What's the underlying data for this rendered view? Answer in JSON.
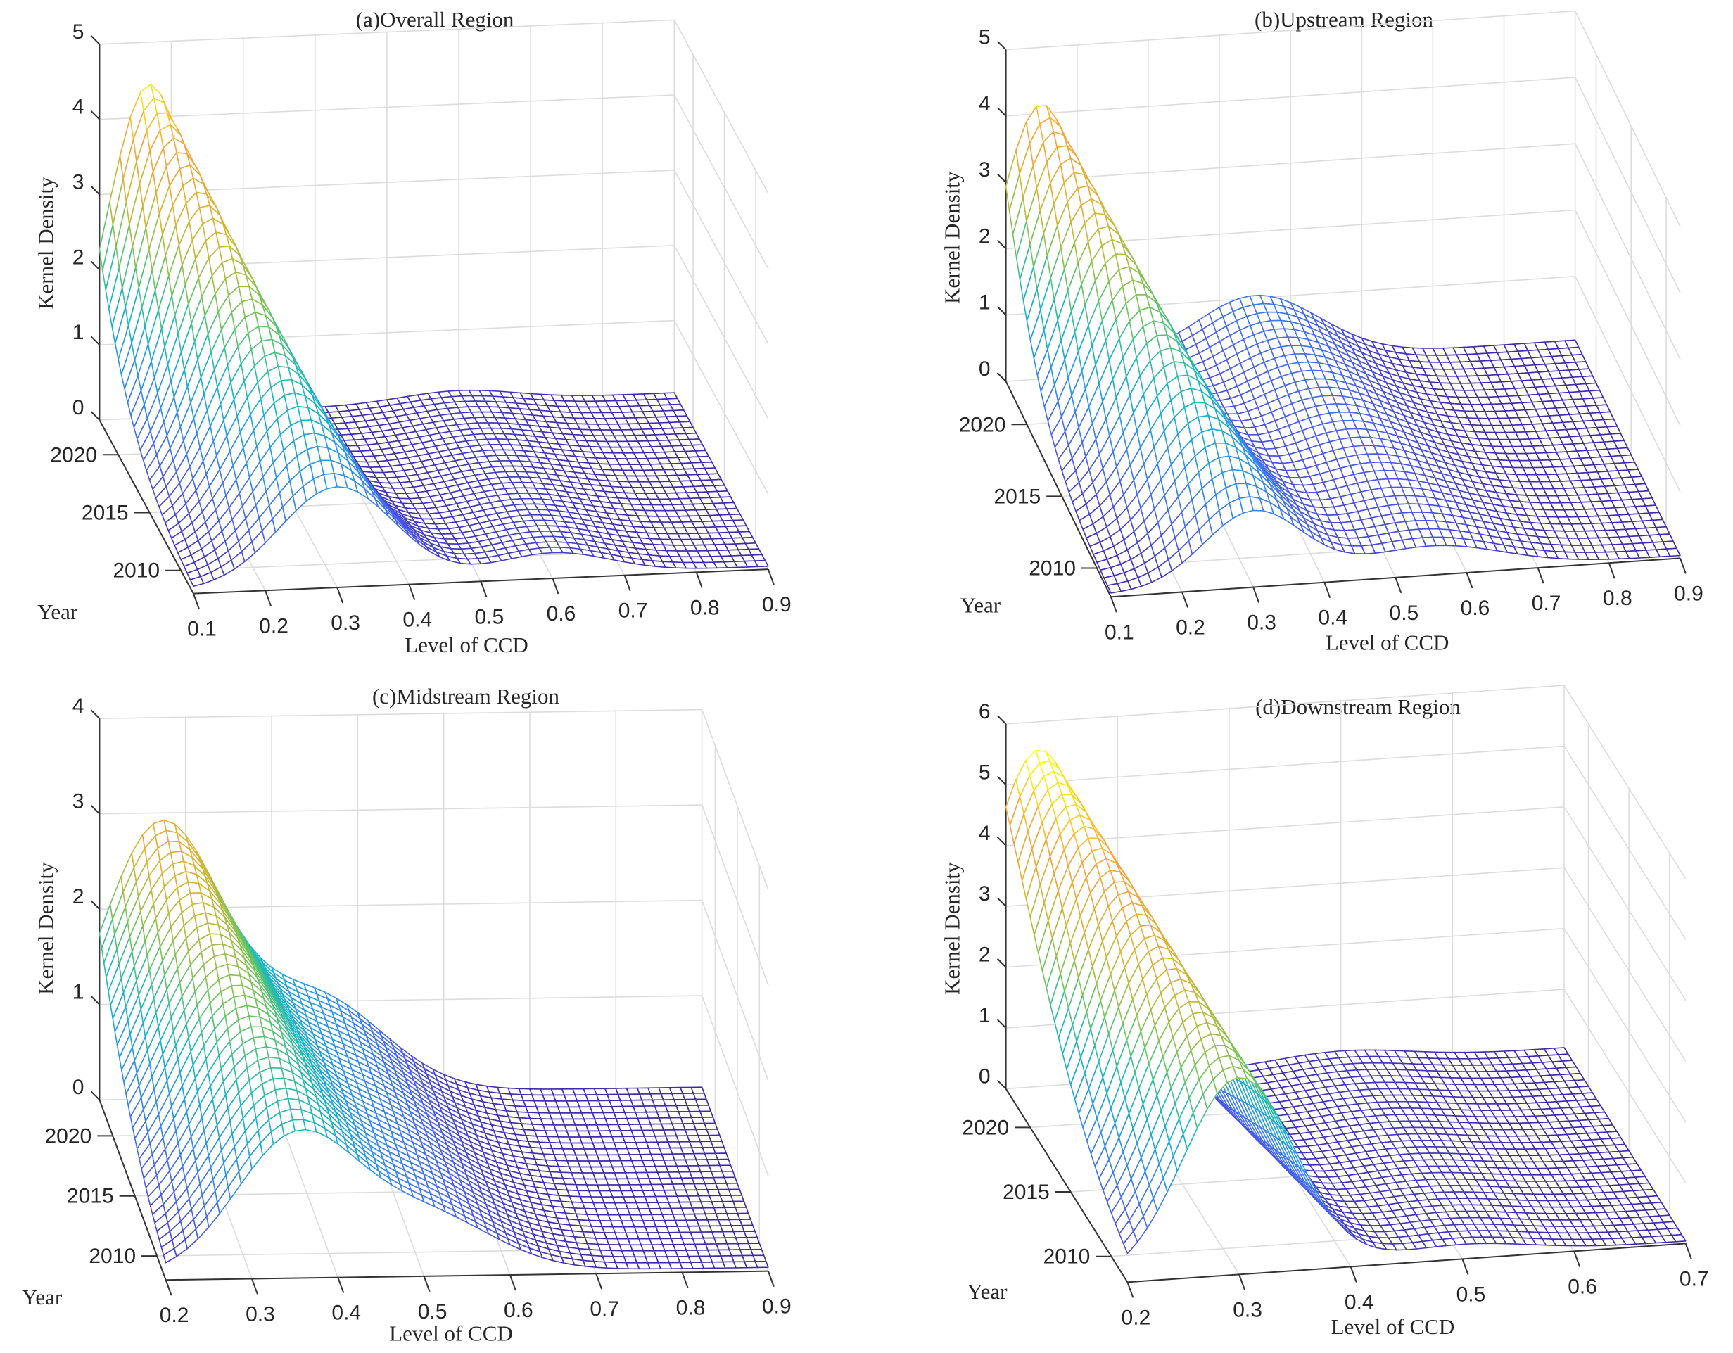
{
  "chart_data": [
    {
      "type": "surface",
      "title": "(a)Overall Region",
      "xlabel": "Level of CCD",
      "ylabel": "Year",
      "zlabel": "Kernel Density",
      "xlim": [
        0.1,
        0.9
      ],
      "xticks": [
        "0.1",
        "0.2",
        "0.3",
        "0.4",
        "0.5",
        "0.6",
        "0.7",
        "0.8",
        "0.9"
      ],
      "ylim": [
        2008,
        2023
      ],
      "yticks": [
        "2010",
        "2015",
        "2020"
      ],
      "zlim": [
        0,
        5
      ],
      "zticks": [
        "0",
        "1",
        "2",
        "3",
        "4",
        "5"
      ],
      "components": [
        {
          "mean": [
            0.3,
            0.17
          ],
          "sd": [
            0.08,
            0.06
          ],
          "height": [
            1.3,
            4.4
          ]
        },
        {
          "mean": [
            0.6,
            0.6
          ],
          "sd": [
            0.08,
            0.08
          ],
          "height": [
            0.3,
            0.15
          ]
        }
      ]
    },
    {
      "type": "surface",
      "title": "(b)Upstream Region",
      "xlabel": "Level of CCD",
      "ylabel": "Year",
      "zlabel": "Kernel Density",
      "xlim": [
        0.1,
        0.9
      ],
      "xticks": [
        "0.1",
        "0.2",
        "0.3",
        "0.4",
        "0.5",
        "0.6",
        "0.7",
        "0.8",
        "0.9"
      ],
      "ylim": [
        2008,
        2023
      ],
      "yticks": [
        "2010",
        "2015",
        "2020"
      ],
      "zlim": [
        0,
        5
      ],
      "zticks": [
        "0",
        "1",
        "2",
        "3",
        "4",
        "5"
      ],
      "components": [
        {
          "mean": [
            0.3,
            0.15
          ],
          "sd": [
            0.07,
            0.06
          ],
          "height": [
            1.1,
            4.1
          ]
        },
        {
          "mean": [
            0.55,
            0.45
          ],
          "sd": [
            0.1,
            0.09
          ],
          "height": [
            0.4,
            1.0
          ]
        }
      ]
    },
    {
      "type": "surface",
      "title": "(c)Midstream Region",
      "xlabel": "Level of CCD",
      "ylabel": "Year",
      "zlabel": "Kernel Density",
      "xlim": [
        0.2,
        0.9
      ],
      "xticks": [
        "0.2",
        "0.3",
        "0.4",
        "0.5",
        "0.6",
        "0.7",
        "0.8",
        "0.9"
      ],
      "ylim": [
        2008,
        2023
      ],
      "yticks": [
        "2010",
        "2015",
        "2020"
      ],
      "zlim": [
        0,
        4
      ],
      "zticks": [
        "0",
        "1",
        "2",
        "3",
        "4"
      ],
      "components": [
        {
          "mean": [
            0.35,
            0.27
          ],
          "sd": [
            0.07,
            0.07
          ],
          "height": [
            1.4,
            2.8
          ]
        },
        {
          "mean": [
            0.5,
            0.45
          ],
          "sd": [
            0.08,
            0.08
          ],
          "height": [
            0.6,
            1.0
          ]
        }
      ]
    },
    {
      "type": "surface",
      "title": "(d)Downstream Region",
      "xlabel": "Level of CCD",
      "ylabel": "Year",
      "zlabel": "Kernel Density",
      "xlim": [
        0.2,
        0.7
      ],
      "xticks": [
        "0.2",
        "0.3",
        "0.4",
        "0.5",
        "0.6",
        "0.7"
      ],
      "ylim": [
        2008,
        2023
      ],
      "yticks": [
        "2010",
        "2015",
        "2020"
      ],
      "zlim": [
        0,
        6
      ],
      "zticks": [
        "0",
        "1",
        "2",
        "3",
        "4",
        "5",
        "6"
      ],
      "components": [
        {
          "mean": [
            0.3,
            0.23
          ],
          "sd": [
            0.05,
            0.05
          ],
          "height": [
            3.2,
            5.5
          ]
        },
        {
          "mean": [
            0.5,
            0.5
          ],
          "sd": [
            0.06,
            0.06
          ],
          "height": [
            0.2,
            0.2
          ]
        }
      ]
    }
  ],
  "colormap": [
    "#3e26a8",
    "#4a5cf0",
    "#2e8ef0",
    "#13b8c4",
    "#6cc65a",
    "#d6b52f",
    "#f9a23c",
    "#f9fb0e"
  ]
}
